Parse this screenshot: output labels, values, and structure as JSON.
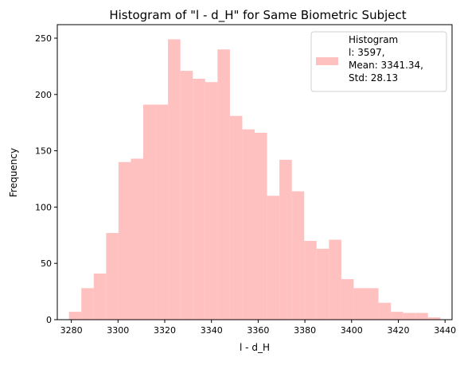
{
  "chart_data": {
    "type": "bar",
    "title": "Histogram of \"l - d_H\" for Same Biometric Subject",
    "xlabel": "l - d_H",
    "ylabel": "Frequency",
    "xlim": [
      3274,
      3443
    ],
    "ylim": [
      0,
      262
    ],
    "xticks": [
      3280,
      3300,
      3320,
      3340,
      3360,
      3380,
      3400,
      3420,
      3440
    ],
    "yticks": [
      0,
      50,
      100,
      150,
      200,
      250
    ],
    "grid": false,
    "bar_color": "#ffc0c0",
    "legend": {
      "placement": "top-right",
      "lines": [
        "Histogram",
        "l: 3597,",
        "Mean: 3341.34,",
        "Std: 28.13"
      ]
    },
    "bins": [
      {
        "x0": 3279.0,
        "x1": 3284.3,
        "y": 7
      },
      {
        "x0": 3284.3,
        "x1": 3289.6,
        "y": 28
      },
      {
        "x0": 3289.6,
        "x1": 3294.9,
        "y": 41
      },
      {
        "x0": 3294.9,
        "x1": 3300.2,
        "y": 77
      },
      {
        "x0": 3300.2,
        "x1": 3305.5,
        "y": 140
      },
      {
        "x0": 3305.5,
        "x1": 3310.8,
        "y": 143
      },
      {
        "x0": 3310.8,
        "x1": 3316.1,
        "y": 191
      },
      {
        "x0": 3316.1,
        "x1": 3321.4,
        "y": 191
      },
      {
        "x0": 3321.4,
        "x1": 3326.7,
        "y": 249
      },
      {
        "x0": 3326.7,
        "x1": 3332.0,
        "y": 221
      },
      {
        "x0": 3332.0,
        "x1": 3337.3,
        "y": 214
      },
      {
        "x0": 3337.3,
        "x1": 3342.6,
        "y": 211
      },
      {
        "x0": 3342.6,
        "x1": 3347.9,
        "y": 240
      },
      {
        "x0": 3347.9,
        "x1": 3353.2,
        "y": 181
      },
      {
        "x0": 3353.2,
        "x1": 3358.5,
        "y": 169
      },
      {
        "x0": 3358.5,
        "x1": 3363.8,
        "y": 166
      },
      {
        "x0": 3363.8,
        "x1": 3369.1,
        "y": 110
      },
      {
        "x0": 3369.1,
        "x1": 3374.4,
        "y": 142
      },
      {
        "x0": 3374.4,
        "x1": 3379.7,
        "y": 114
      },
      {
        "x0": 3379.7,
        "x1": 3385.0,
        "y": 70
      },
      {
        "x0": 3385.0,
        "x1": 3390.3,
        "y": 63
      },
      {
        "x0": 3390.3,
        "x1": 3395.6,
        "y": 71
      },
      {
        "x0": 3395.6,
        "x1": 3400.9,
        "y": 36
      },
      {
        "x0": 3400.9,
        "x1": 3406.2,
        "y": 28
      },
      {
        "x0": 3406.2,
        "x1": 3411.5,
        "y": 28
      },
      {
        "x0": 3411.5,
        "x1": 3416.8,
        "y": 15
      },
      {
        "x0": 3416.8,
        "x1": 3422.1,
        "y": 7
      },
      {
        "x0": 3422.1,
        "x1": 3427.4,
        "y": 6
      },
      {
        "x0": 3427.4,
        "x1": 3432.7,
        "y": 6
      },
      {
        "x0": 3432.7,
        "x1": 3438.0,
        "y": 2
      }
    ]
  }
}
